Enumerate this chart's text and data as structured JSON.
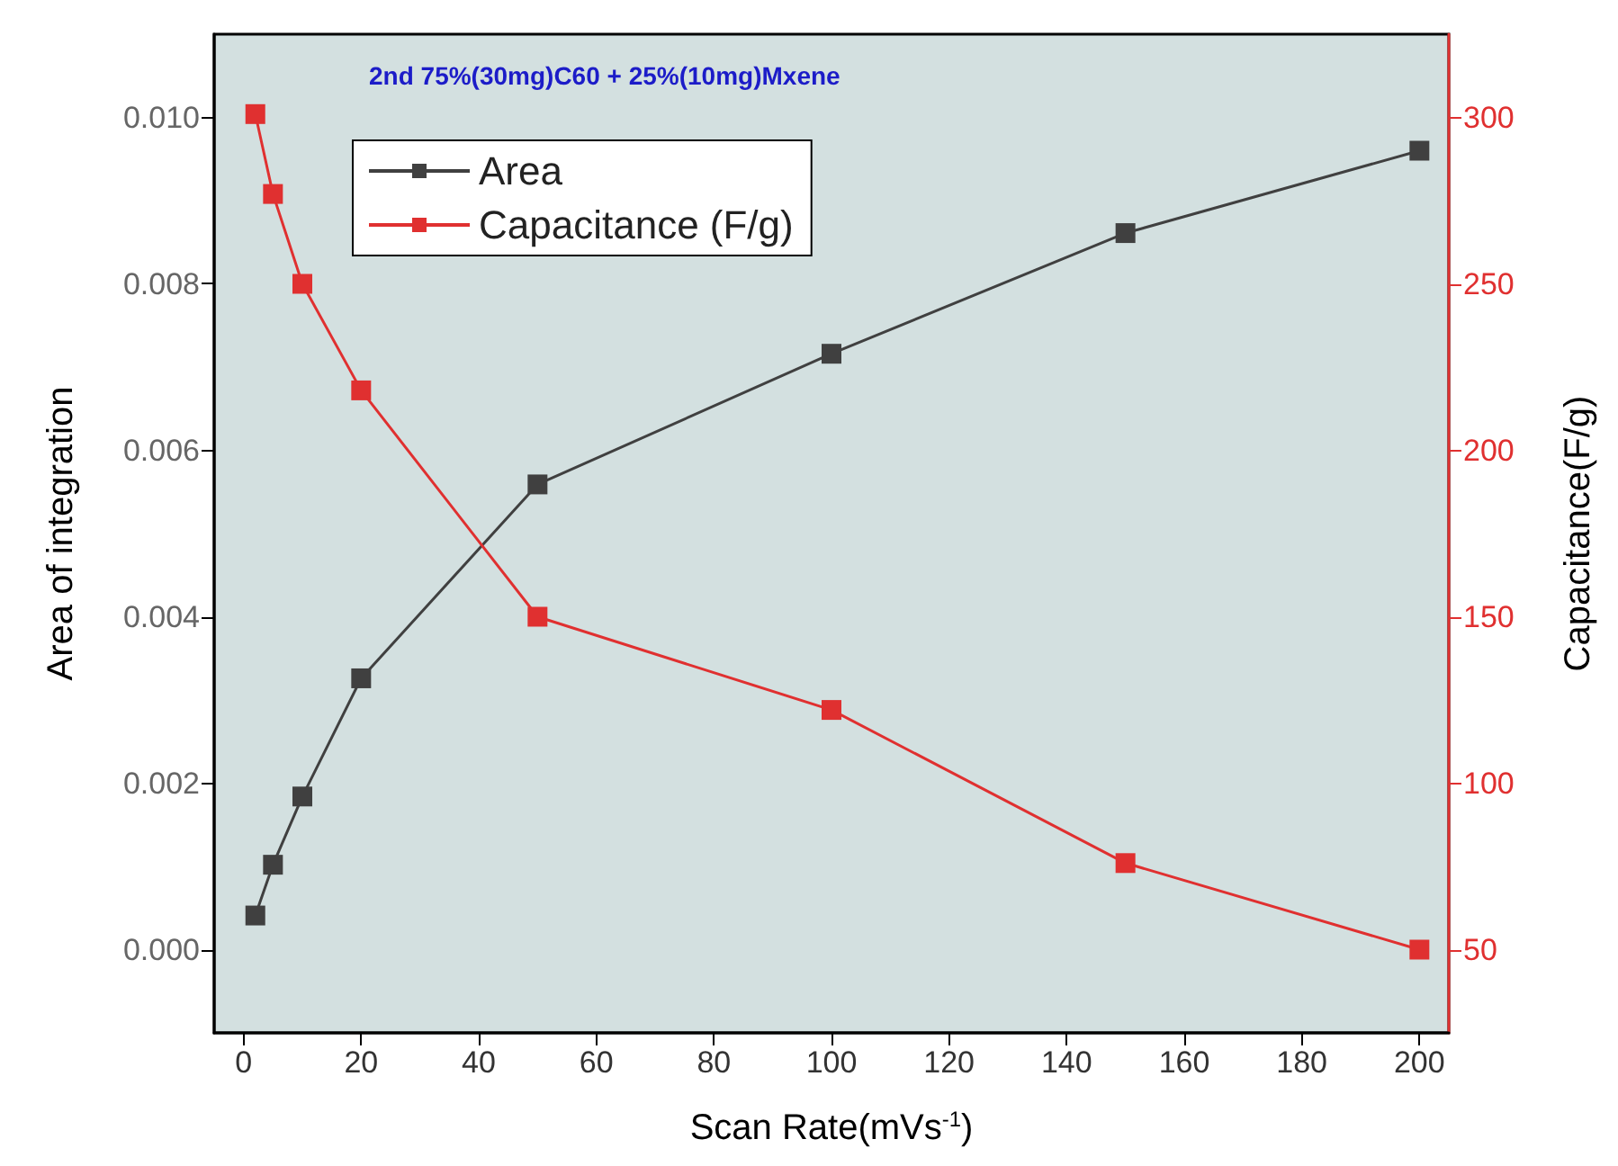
{
  "chart_data": {
    "type": "line",
    "title": "2nd 75%(30mg)C60 + 25%(10mg)Mxene",
    "xlabel": "Scan Rate(mVs$^{-1}$)",
    "ylabel": "Area of integration",
    "y2label": "Capacitance(F/g)",
    "x": [
      2,
      5,
      10,
      20,
      50,
      100,
      150,
      200
    ],
    "series": [
      {
        "name": "Area",
        "color": "#404040",
        "values": [
          0.00041,
          0.00102,
          0.00184,
          0.00326,
          0.00559,
          0.00716,
          0.00861,
          0.0096
        ]
      },
      {
        "name": "Capacitance (F/g)",
        "color": "#e03030",
        "axis": "y2",
        "values": [
          301,
          277,
          250,
          218,
          150,
          122,
          76,
          50
        ]
      }
    ],
    "xlim": [
      -5,
      205
    ],
    "xticks": [
      0,
      20,
      40,
      60,
      80,
      100,
      120,
      140,
      160,
      180,
      200
    ],
    "ylim": [
      -0.001,
      0.011
    ],
    "yticks": [
      {
        "value": 0,
        "label": "0.000"
      },
      {
        "value": 0.002,
        "label": "0.002"
      },
      {
        "value": 0.004,
        "label": "0.004"
      },
      {
        "value": 0.006,
        "label": "0.006"
      },
      {
        "value": 0.008,
        "label": "0.008"
      },
      {
        "value": 0.01,
        "label": "0.010"
      }
    ],
    "y2lim": [
      25,
      325
    ],
    "y2ticks": [
      50,
      100,
      150,
      200,
      250,
      300
    ],
    "legend": "top left",
    "marker": "square"
  }
}
